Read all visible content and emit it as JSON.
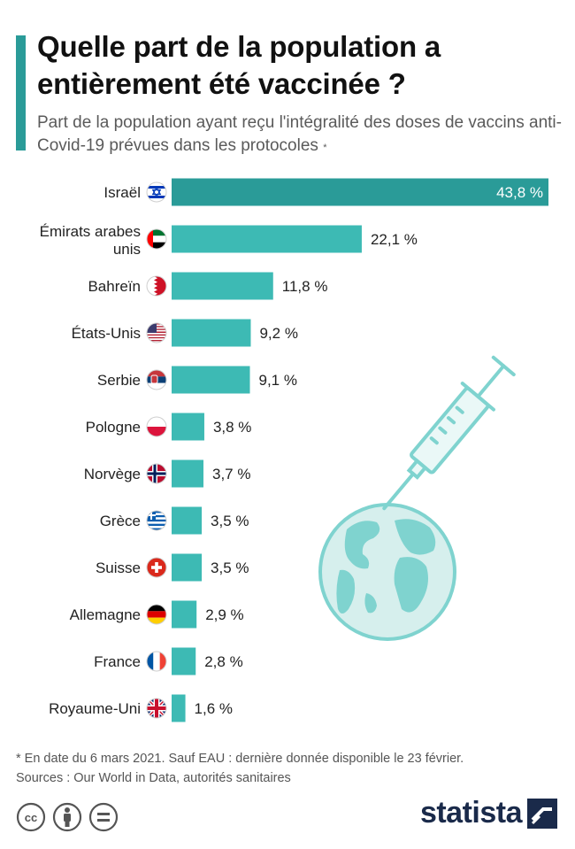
{
  "header": {
    "title": "Quelle part de la population a entièrement été vaccinée ?",
    "subtitle": "Part de la population ayant reçu l'intégralité des doses de vaccins anti-Covid-19 prévues dans les protocoles",
    "subtitle_mark": "*"
  },
  "colors": {
    "accent": "#2a9b98",
    "bar_highlight": "#2a9b98",
    "bar": "#3dbab4",
    "illustration": "#7fd3cf"
  },
  "chart_data": {
    "type": "bar",
    "orientation": "horizontal",
    "categories": [
      "Israël",
      "Émirats arabes unis",
      "Bahreïn",
      "États-Unis",
      "Serbie",
      "Pologne",
      "Norvège",
      "Grèce",
      "Suisse",
      "Allemagne",
      "France",
      "Royaume-Uni"
    ],
    "category_flags": [
      "israel-flag-icon",
      "uae-flag-icon",
      "bahrain-flag-icon",
      "usa-flag-icon",
      "serbia-flag-icon",
      "poland-flag-icon",
      "norway-flag-icon",
      "greece-flag-icon",
      "switzerland-flag-icon",
      "germany-flag-icon",
      "france-flag-icon",
      "uk-flag-icon"
    ],
    "values": [
      43.8,
      22.1,
      11.8,
      9.2,
      9.1,
      3.8,
      3.7,
      3.5,
      3.5,
      2.9,
      2.8,
      1.6
    ],
    "value_labels": [
      "43,8 %",
      "22,1 %",
      "11,8 %",
      "9,2 %",
      "9,1 %",
      "3,8 %",
      "3,7 %",
      "3,5 %",
      "3,5 %",
      "2,9 %",
      "2,8 %",
      "1,6 %"
    ],
    "highlight_index": 0,
    "xlim": [
      0,
      43.8
    ],
    "grid": false,
    "legend": "none"
  },
  "illustration": {
    "name": "syringe-globe-illustration"
  },
  "footer": {
    "note": "* En date du 6 mars 2021. Sauf EAU : dernière donnée disponible le 23 février.",
    "sources": "Sources : Our World in Data, autorités sanitaires",
    "brand": "statista",
    "license_icons": [
      "cc-icon",
      "by-icon",
      "nd-icon"
    ]
  }
}
